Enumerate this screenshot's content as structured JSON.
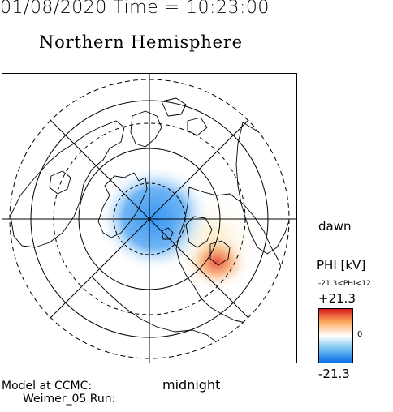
{
  "header": {
    "timestamp": "01/08/2020 Time = 10:23:00",
    "hemisphere": "Northern Hemisphere"
  },
  "map": {
    "projection": "north-polar",
    "orientation_labels": {
      "dawn": "dawn",
      "midnight": "midnight"
    },
    "potential_cells": [
      {
        "sign": "negative",
        "location": "pre-noon / dusk side",
        "color": "#2e8ff0"
      },
      {
        "sign": "positive",
        "location": "dawn-midnight sector",
        "color": "#e8412c"
      }
    ],
    "grid": true,
    "coastlines": true
  },
  "colorbar": {
    "title": "PHI [kV]",
    "range_text": "-21.3<PHI<12",
    "max_label": "+21.3",
    "zero_label": "0",
    "min_label": "-21.3",
    "colors": {
      "high": "#d7191c",
      "mid_high": "#fdae61",
      "mid": "#ffffff",
      "mid_low": "#74c0f0",
      "low": "#0a6fe6"
    }
  },
  "credits": {
    "line1": "Model at CCMC:",
    "line2": "Weimer_05 Run:"
  }
}
